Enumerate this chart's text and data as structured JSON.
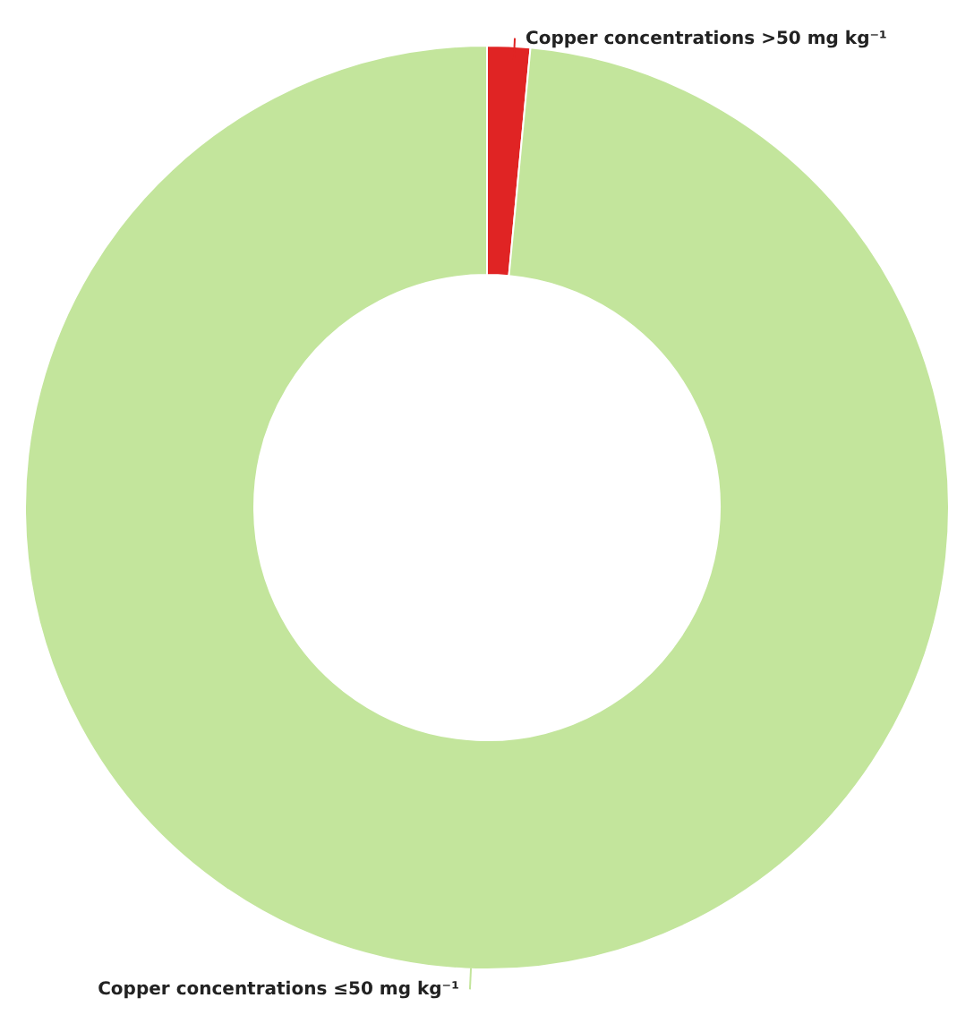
{
  "chart_data": {
    "type": "donut",
    "categories": [
      "Copper concentrations >50 mg kg⁻¹",
      "Copper concentrations ≤50 mg kg⁻¹"
    ],
    "values": [
      1.5,
      98.5
    ],
    "colors": [
      "#e02424",
      "#c3e59c"
    ]
  }
}
